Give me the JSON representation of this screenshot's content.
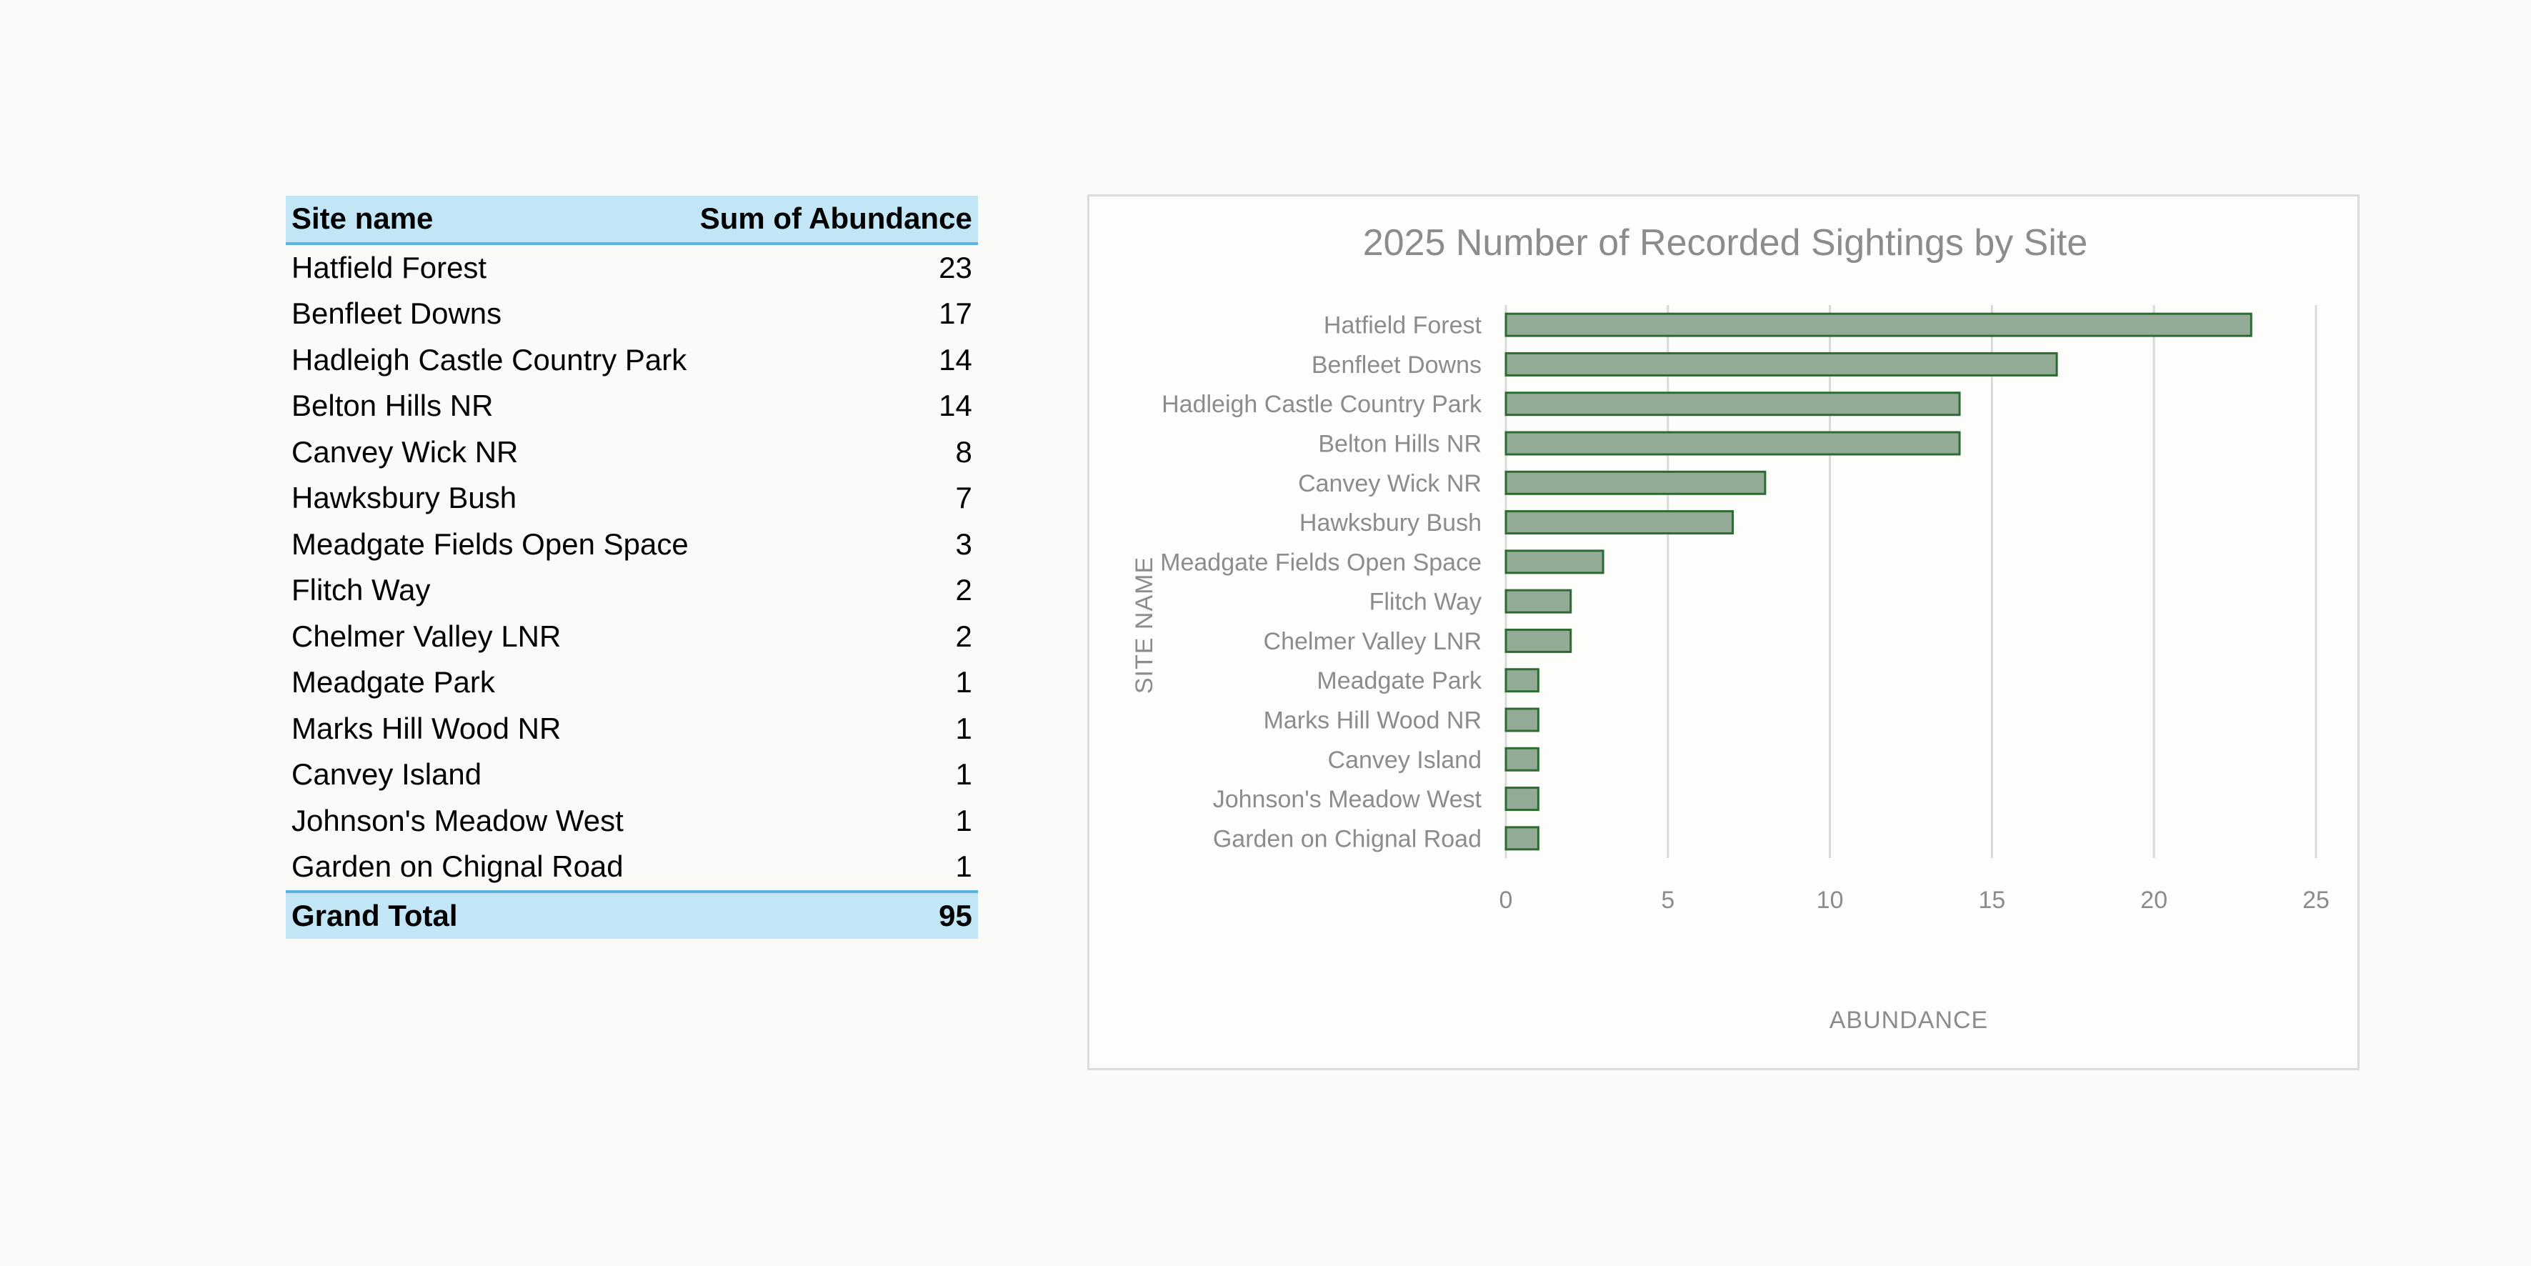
{
  "table": {
    "header": {
      "site": "Site name",
      "sum": "Sum of Abundance"
    },
    "rows": [
      {
        "site": "Hatfield Forest",
        "value": "23"
      },
      {
        "site": "Benfleet Downs",
        "value": "17"
      },
      {
        "site": "Hadleigh Castle Country Park",
        "value": "14"
      },
      {
        "site": "Belton Hills NR",
        "value": "14"
      },
      {
        "site": "Canvey Wick NR",
        "value": "8"
      },
      {
        "site": "Hawksbury Bush",
        "value": "7"
      },
      {
        "site": "Meadgate Fields Open Space",
        "value": "3"
      },
      {
        "site": "Flitch Way",
        "value": "2"
      },
      {
        "site": "Chelmer Valley LNR",
        "value": "2"
      },
      {
        "site": "Meadgate Park",
        "value": "1"
      },
      {
        "site": "Marks Hill Wood NR",
        "value": "1"
      },
      {
        "site": "Canvey Island",
        "value": "1"
      },
      {
        "site": "Johnson's Meadow West",
        "value": "1"
      },
      {
        "site": "Garden on Chignal Road",
        "value": "1"
      }
    ],
    "total": {
      "label": "Grand Total",
      "value": "95"
    }
  },
  "chart_data": {
    "type": "bar",
    "orientation": "horizontal",
    "title": "2025 Number of Recorded Sightings by Site",
    "xlabel": "ABUNDANCE",
    "ylabel": "SITE NAME",
    "categories": [
      "Hatfield Forest",
      "Benfleet Downs",
      "Hadleigh Castle Country Park",
      "Belton Hills NR",
      "Canvey Wick NR",
      "Hawksbury Bush",
      "Meadgate Fields Open Space",
      "Flitch Way",
      "Chelmer Valley LNR",
      "Meadgate Park",
      "Marks Hill Wood NR",
      "Canvey Island",
      "Johnson's Meadow West",
      "Garden on Chignal Road"
    ],
    "values": [
      23,
      17,
      14,
      14,
      8,
      7,
      3,
      2,
      2,
      1,
      1,
      1,
      1,
      1
    ],
    "xlim": [
      0,
      25
    ],
    "xticks": [
      0,
      5,
      10,
      15,
      20,
      25
    ],
    "grid": "vertical",
    "legend": "none",
    "colors": {
      "bar_fill": "#93ab96",
      "bar_edge": "#2e6b34"
    }
  }
}
